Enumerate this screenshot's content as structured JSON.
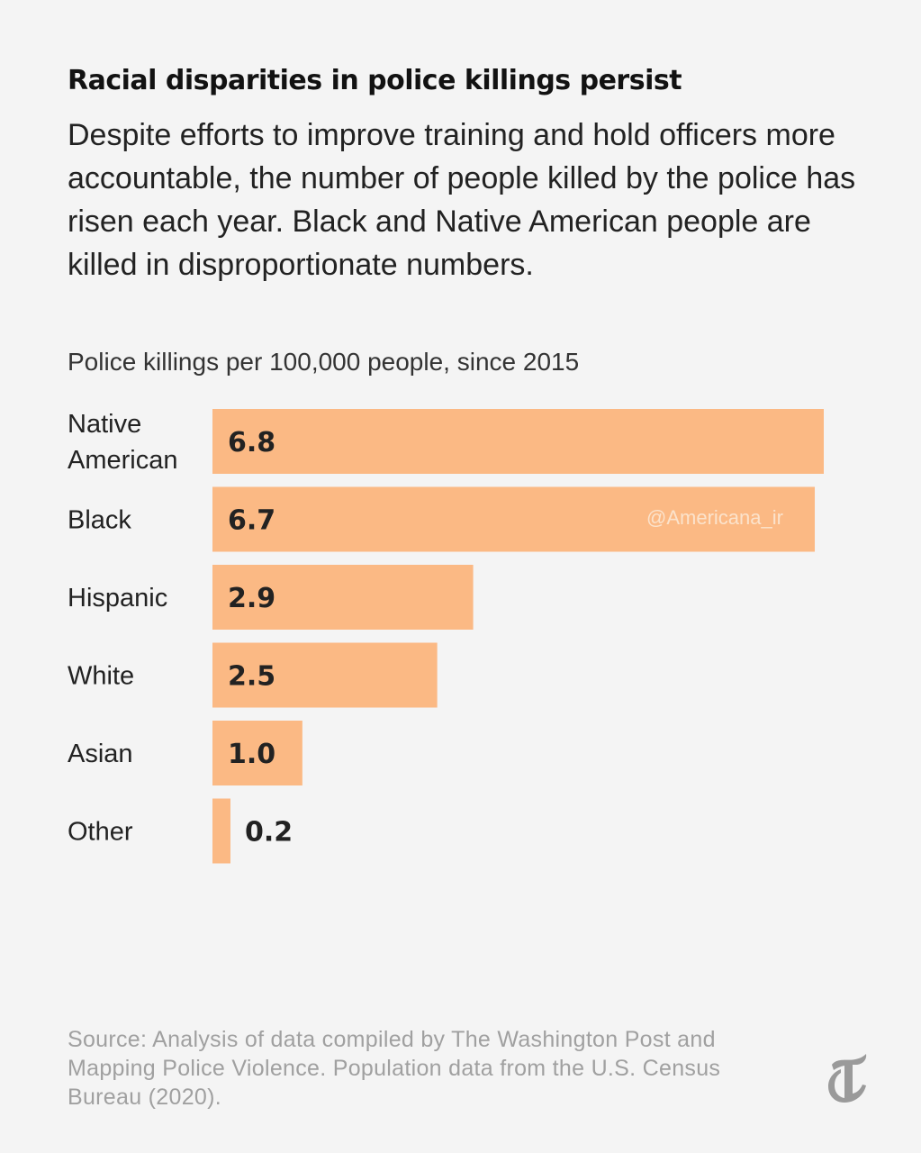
{
  "header": {
    "title": "Racial disparities in police killings persist",
    "subtitle": "Despite efforts to improve training and hold officers more accountable, the number of people killed by the police has risen each year. Black and Native American people are killed in disproportionate numbers."
  },
  "watermark": "@Americana_ir",
  "source": "Source: Analysis of data compiled by The Washington Post and Mapping Police Violence. Population data from the U.S. Census Bureau (2020).",
  "logo_icon": "nyt-logo-icon",
  "colors": {
    "bar": "#fbb984",
    "background": "#f4f4f4",
    "text": "#222222"
  },
  "chart_data": {
    "type": "bar",
    "orientation": "horizontal",
    "title": "Police killings per 100,000 people, since 2015",
    "categories": [
      [
        "Native",
        "American"
      ],
      [
        "Black"
      ],
      [
        "Hispanic"
      ],
      [
        "White"
      ],
      [
        "Asian"
      ],
      [
        "Other"
      ]
    ],
    "values": [
      6.8,
      6.7,
      2.9,
      2.5,
      1.0,
      0.2
    ],
    "value_labels": [
      "6.8",
      "6.7",
      "2.9",
      "2.5",
      "1.0",
      "0.2"
    ],
    "xlim": [
      0,
      6.8
    ],
    "grid": false,
    "legend": "none"
  }
}
